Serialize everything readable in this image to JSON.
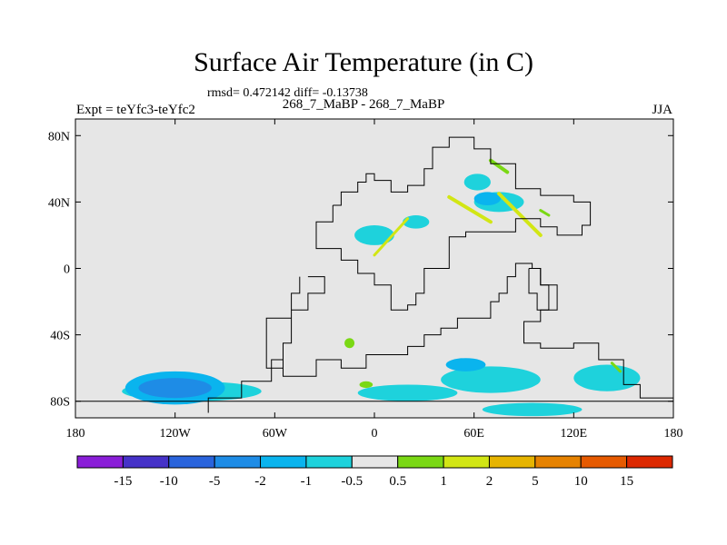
{
  "title": "Surface Air Temperature (in C)",
  "stats": "rmsd= 0.472142 diff= -0.13738",
  "subtitle": "268_7_MaBP - 268_7_MaBP",
  "left_label": "Expt = teYfc3-teYfc2",
  "right_label": "JJA",
  "map": {
    "lon_range": [
      -180,
      180
    ],
    "lat_range": [
      -90,
      90
    ],
    "x_ticks": [
      {
        "value": -180,
        "label": "180"
      },
      {
        "value": -120,
        "label": "120W"
      },
      {
        "value": -60,
        "label": "60W"
      },
      {
        "value": 0,
        "label": "0"
      },
      {
        "value": 60,
        "label": "60E"
      },
      {
        "value": 120,
        "label": "120E"
      },
      {
        "value": 180,
        "label": "180"
      }
    ],
    "y_ticks": [
      {
        "value": 80,
        "label": "80N"
      },
      {
        "value": 40,
        "label": "40N"
      },
      {
        "value": 0,
        "label": "0"
      },
      {
        "value": -40,
        "label": "40S"
      },
      {
        "value": -80,
        "label": "80S"
      }
    ],
    "background_color": "#e6e6e6",
    "continent_outline": [
      [
        -100,
        -87
      ],
      [
        -100,
        -78
      ],
      [
        -80,
        -78
      ],
      [
        -80,
        -68
      ],
      [
        -62,
        -68
      ],
      [
        -62,
        -55
      ],
      [
        -55,
        -55
      ],
      [
        -55,
        -65
      ],
      [
        -35,
        -65
      ],
      [
        -35,
        -55
      ],
      [
        -20,
        -55
      ],
      [
        -20,
        -60
      ],
      [
        -5,
        -60
      ],
      [
        -5,
        -52
      ],
      [
        20,
        -52
      ],
      [
        20,
        -47
      ],
      [
        30,
        -47
      ],
      [
        30,
        -40
      ],
      [
        40,
        -40
      ],
      [
        40,
        -36
      ],
      [
        50,
        -36
      ],
      [
        50,
        -30
      ],
      [
        70,
        -30
      ],
      [
        70,
        -20
      ],
      [
        75,
        -20
      ],
      [
        75,
        -15
      ],
      [
        80,
        -15
      ],
      [
        80,
        -5
      ],
      [
        85,
        -5
      ],
      [
        85,
        3
      ],
      [
        95,
        3
      ],
      [
        95,
        0
      ],
      [
        100,
        0
      ],
      [
        100,
        -10
      ],
      [
        110,
        -10
      ],
      [
        110,
        -25
      ],
      [
        100,
        -25
      ],
      [
        100,
        -32
      ],
      [
        90,
        -32
      ],
      [
        90,
        -45
      ],
      [
        100,
        -45
      ],
      [
        100,
        -48
      ],
      [
        120,
        -48
      ],
      [
        120,
        -45
      ],
      [
        135,
        -45
      ],
      [
        135,
        -55
      ],
      [
        150,
        -55
      ],
      [
        150,
        -70
      ],
      [
        160,
        -70
      ],
      [
        160,
        -78
      ],
      [
        180,
        -78
      ]
    ],
    "north_outline": [
      [
        -25,
        38
      ],
      [
        -20,
        38
      ],
      [
        -20,
        46
      ],
      [
        -10,
        46
      ],
      [
        -10,
        52
      ],
      [
        -5,
        52
      ],
      [
        -5,
        57
      ],
      [
        0,
        57
      ],
      [
        0,
        53
      ],
      [
        10,
        53
      ],
      [
        10,
        46
      ],
      [
        20,
        46
      ],
      [
        20,
        50
      ],
      [
        30,
        50
      ],
      [
        30,
        60
      ],
      [
        35,
        60
      ],
      [
        35,
        73
      ],
      [
        45,
        73
      ],
      [
        45,
        79
      ],
      [
        60,
        79
      ],
      [
        60,
        72
      ],
      [
        70,
        72
      ],
      [
        70,
        63
      ],
      [
        85,
        63
      ],
      [
        85,
        48
      ],
      [
        100,
        48
      ],
      [
        100,
        44
      ],
      [
        120,
        44
      ],
      [
        120,
        40
      ],
      [
        130,
        40
      ],
      [
        130,
        26
      ],
      [
        125,
        26
      ],
      [
        125,
        20
      ],
      [
        110,
        20
      ],
      [
        110,
        25
      ],
      [
        100,
        25
      ],
      [
        100,
        30
      ],
      [
        85,
        30
      ],
      [
        85,
        22
      ],
      [
        55,
        22
      ],
      [
        55,
        19
      ],
      [
        45,
        19
      ],
      [
        45,
        0
      ],
      [
        30,
        0
      ],
      [
        30,
        -15
      ],
      [
        25,
        -15
      ],
      [
        25,
        -22
      ],
      [
        20,
        -22
      ],
      [
        20,
        -25
      ],
      [
        10,
        -25
      ],
      [
        10,
        -10
      ],
      [
        0,
        -10
      ],
      [
        0,
        -3
      ],
      [
        -10,
        -3
      ],
      [
        -10,
        5
      ],
      [
        -20,
        5
      ],
      [
        -20,
        12
      ],
      [
        -35,
        12
      ],
      [
        -35,
        28
      ],
      [
        -25,
        28
      ],
      [
        -25,
        38
      ]
    ],
    "sa_outline": [
      [
        -40,
        -5
      ],
      [
        -30,
        -5
      ],
      [
        -30,
        -15
      ],
      [
        -40,
        -15
      ],
      [
        -40,
        -25
      ],
      [
        -50,
        -25
      ],
      [
        -50,
        -45
      ],
      [
        -55,
        -45
      ],
      [
        -55,
        -60
      ],
      [
        -65,
        -60
      ],
      [
        -65,
        -30
      ],
      [
        -50,
        -30
      ],
      [
        -50,
        -15
      ],
      [
        -45,
        -15
      ],
      [
        -45,
        -5
      ]
    ],
    "india_outline": [
      [
        93,
        0
      ],
      [
        100,
        0
      ],
      [
        100,
        -10
      ],
      [
        105,
        -10
      ],
      [
        105,
        -25
      ],
      [
        98,
        -25
      ],
      [
        98,
        -15
      ],
      [
        93,
        -15
      ],
      [
        93,
        0
      ]
    ]
  },
  "colorbar": {
    "colors": [
      "#8a1ed8",
      "#4632c8",
      "#2a64dc",
      "#1e8ce6",
      "#0ab4ee",
      "#1ed2dc",
      "#e6e6e6",
      "#7ad814",
      "#d2e614",
      "#e6b400",
      "#e68200",
      "#e65a00",
      "#dc2800"
    ],
    "labels": [
      "-15",
      "-10",
      "-5",
      "-2",
      "-1",
      "-0.5",
      "0.5",
      "1",
      "2",
      "5",
      "10",
      "15"
    ]
  },
  "anomaly_patches": [
    {
      "type": "ellipse",
      "lon": -110,
      "lat": -74,
      "rlon": 42,
      "rlat": 6,
      "color": "#1ed2dc"
    },
    {
      "type": "ellipse",
      "lon": -120,
      "lat": -72,
      "rlon": 30,
      "rlat": 10,
      "color": "#0ab4ee"
    },
    {
      "type": "ellipse",
      "lon": -120,
      "lat": -72,
      "rlon": 22,
      "rlat": 6,
      "color": "#1e8ce6"
    },
    {
      "type": "ellipse",
      "lon": 70,
      "lat": -67,
      "rlon": 30,
      "rlat": 8,
      "color": "#1ed2dc"
    },
    {
      "type": "ellipse",
      "lon": 140,
      "lat": -66,
      "rlon": 20,
      "rlat": 8,
      "color": "#1ed2dc"
    },
    {
      "type": "ellipse",
      "lon": 20,
      "lat": -75,
      "rlon": 30,
      "rlat": 5,
      "color": "#1ed2dc"
    },
    {
      "type": "ellipse",
      "lon": 95,
      "lat": -85,
      "rlon": 30,
      "rlat": 4,
      "color": "#1ed2dc"
    },
    {
      "type": "ellipse",
      "lon": 55,
      "lat": -58,
      "rlon": 12,
      "rlat": 4,
      "color": "#0ab4ee"
    },
    {
      "type": "ellipse",
      "lon": 75,
      "lat": 40,
      "rlon": 15,
      "rlat": 6,
      "color": "#1ed2dc"
    },
    {
      "type": "ellipse",
      "lon": 62,
      "lat": 52,
      "rlon": 8,
      "rlat": 5,
      "color": "#1ed2dc"
    },
    {
      "type": "ellipse",
      "lon": 68,
      "lat": 42,
      "rlon": 8,
      "rlat": 4,
      "color": "#0ab4ee"
    },
    {
      "type": "ellipse",
      "lon": 0,
      "lat": 20,
      "rlon": 12,
      "rlat": 6,
      "color": "#1ed2dc"
    },
    {
      "type": "ellipse",
      "lon": 25,
      "lat": 28,
      "rlon": 8,
      "rlat": 4,
      "color": "#1ed2dc"
    },
    {
      "type": "ellipse",
      "lon": -5,
      "lat": -70,
      "rlon": 4,
      "rlat": 2,
      "color": "#7ad814"
    },
    {
      "type": "ellipse",
      "lon": -15,
      "lat": -45,
      "rlon": 3,
      "rlat": 3,
      "color": "#7ad814"
    },
    {
      "type": "line",
      "lon1": 45,
      "lat1": 43,
      "lon2": 70,
      "lat2": 28,
      "color": "#d2e614",
      "width": 4
    },
    {
      "type": "line",
      "lon1": 75,
      "lat1": 45,
      "lon2": 100,
      "lat2": 20,
      "color": "#d2e614",
      "width": 4
    },
    {
      "type": "line",
      "lon1": 0,
      "lat1": 8,
      "lon2": 20,
      "lat2": 30,
      "color": "#d2e614",
      "width": 3
    },
    {
      "type": "line",
      "lon1": 70,
      "lat1": 65,
      "lon2": 80,
      "lat2": 58,
      "color": "#7ad814",
      "width": 4
    },
    {
      "type": "line",
      "lon1": 100,
      "lat1": 35,
      "lon2": 105,
      "lat2": 32,
      "color": "#7ad814",
      "width": 3
    },
    {
      "type": "line",
      "lon1": 143,
      "lat1": -57,
      "lon2": 148,
      "lat2": -62,
      "color": "#7ad814",
      "width": 3
    }
  ]
}
